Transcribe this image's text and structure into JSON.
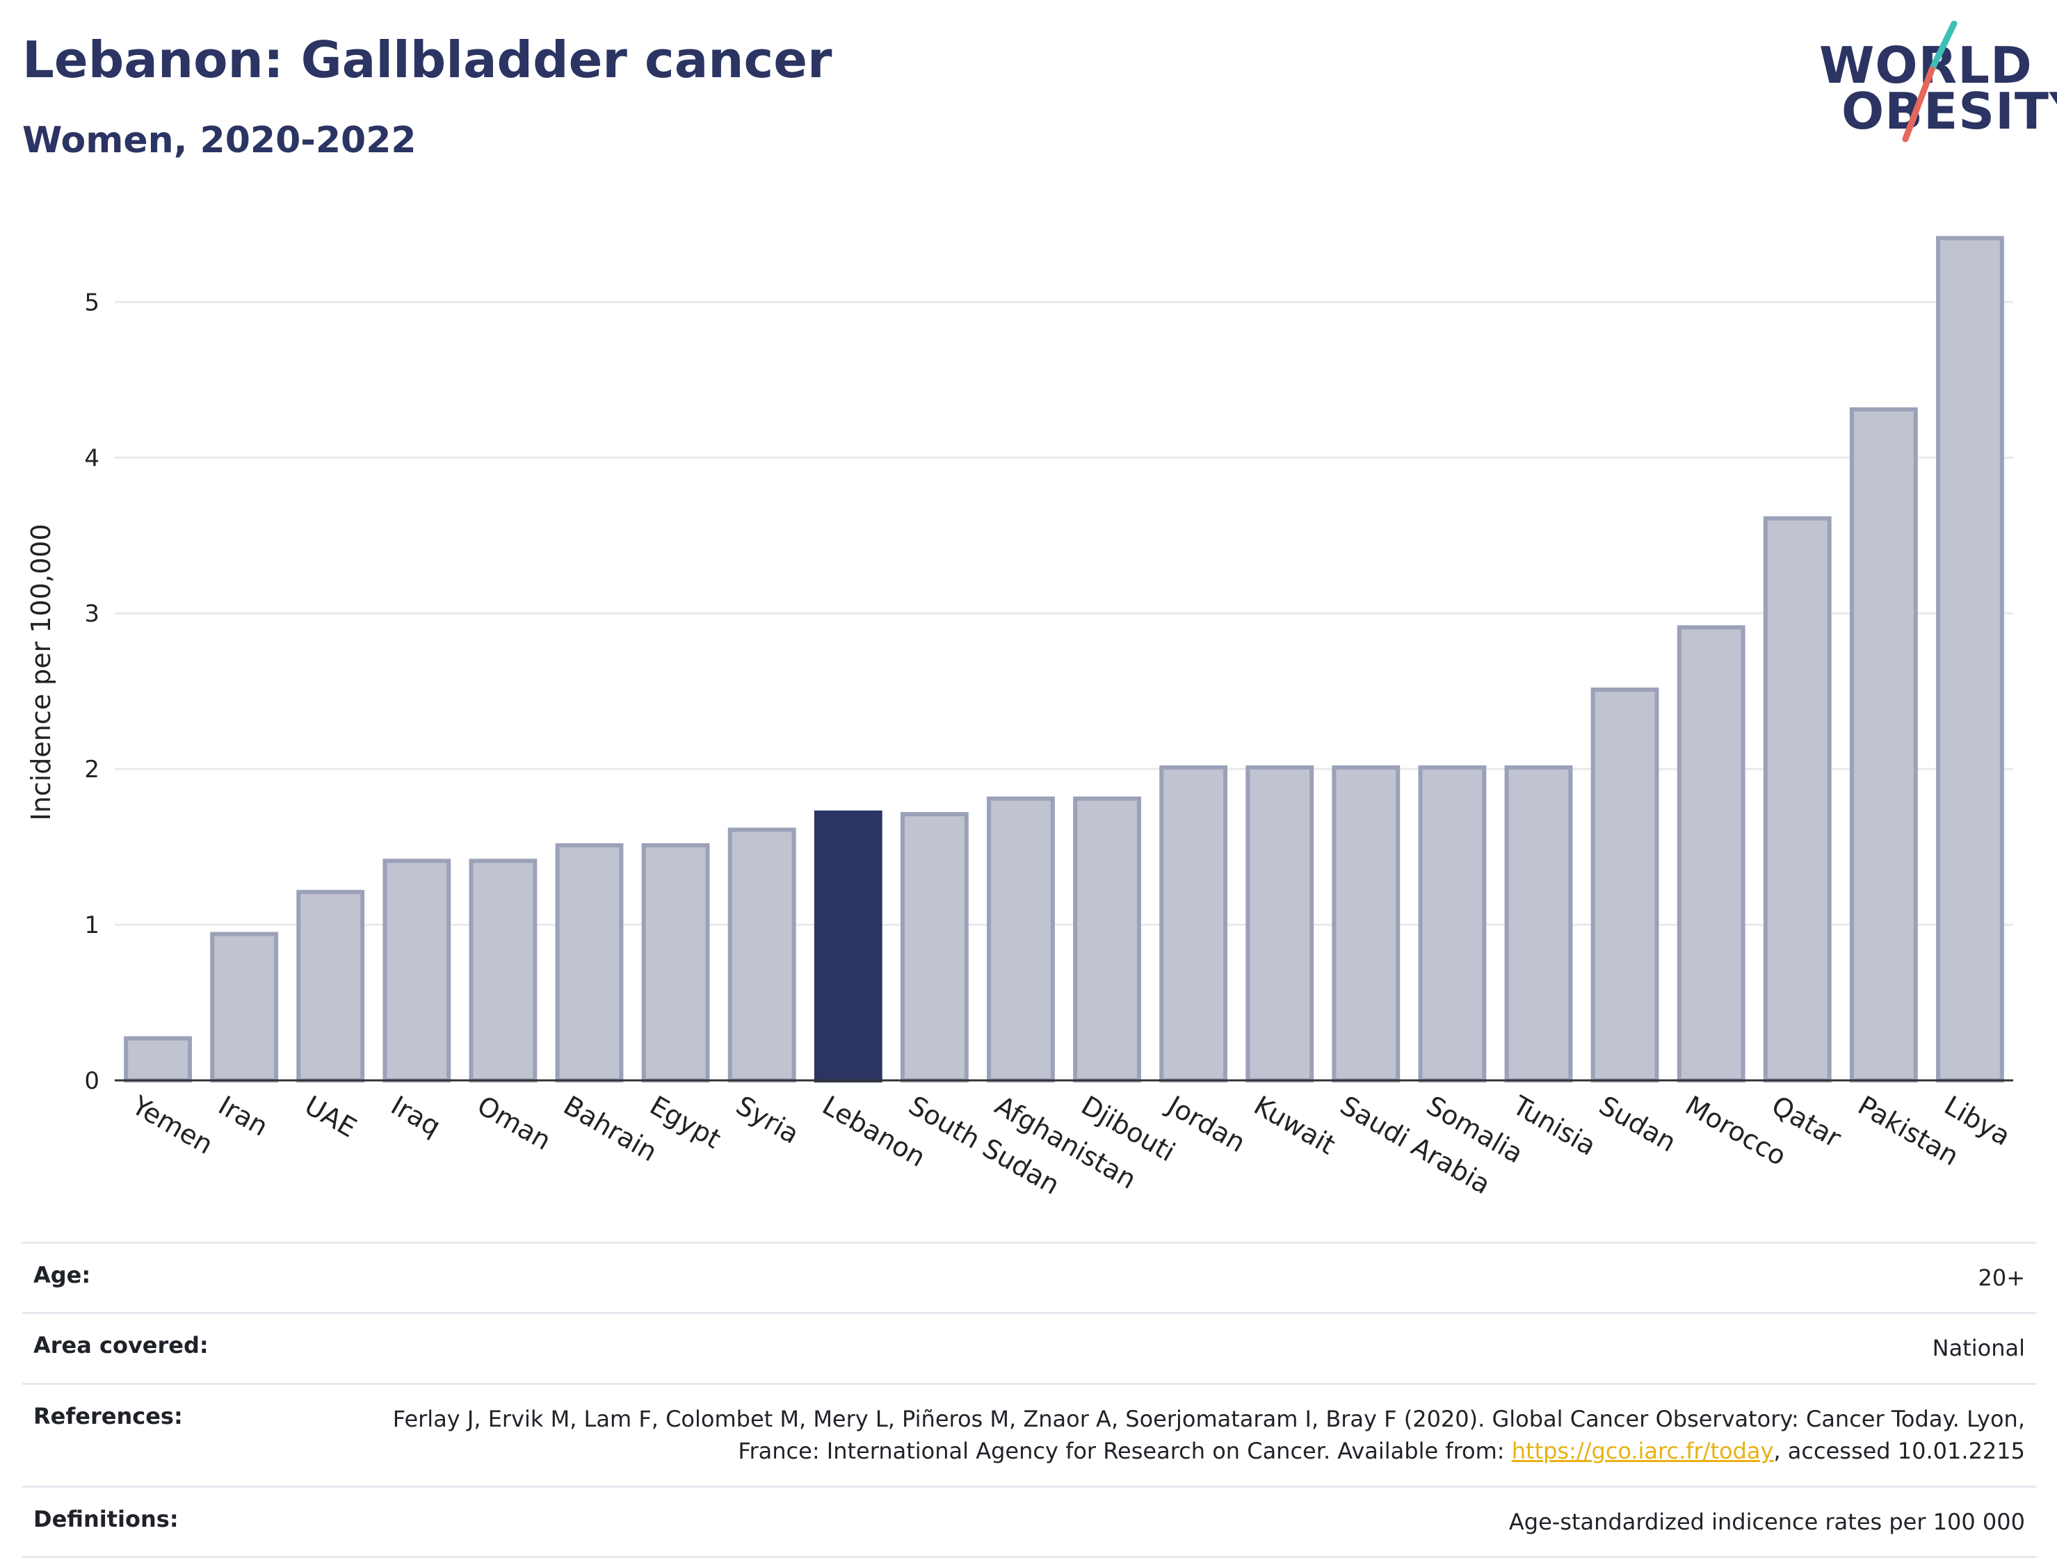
{
  "header": {
    "title": "Lebanon: Gallbladder cancer",
    "subtitle": "Women, 2020-2022"
  },
  "logo": {
    "line1": "WORLD",
    "line2": "OBESITY",
    "slash_colors": [
      "#3dbfb5",
      "#e5685b"
    ]
  },
  "chart_data": {
    "type": "bar",
    "categories": [
      "Yemen",
      "Iran",
      "UAE",
      "Iraq",
      "Oman",
      "Bahrain",
      "Egypt",
      "Syria",
      "Lebanon",
      "South Sudan",
      "Afghanistan",
      "Djibouti",
      "Jordan",
      "Kuwait",
      "Saudi Arabia",
      "Somalia",
      "Tunisia",
      "Sudan",
      "Morocco",
      "Qatar",
      "Pakistan",
      "Libya"
    ],
    "values": [
      0.27,
      0.94,
      1.21,
      1.41,
      1.41,
      1.51,
      1.51,
      1.61,
      1.72,
      1.71,
      1.81,
      1.81,
      2.01,
      2.01,
      2.01,
      2.01,
      2.01,
      2.51,
      2.91,
      3.61,
      4.31,
      5.41
    ],
    "highlight": "Lebanon",
    "ylabel": "Incidence per 100,000",
    "ylim": [
      0,
      5.6
    ],
    "yticks": [
      0,
      1,
      2,
      3,
      4,
      5
    ],
    "grid": true,
    "colors": {
      "bar": "#c0c3d0",
      "bar_edge": "#9ba1b8",
      "highlight": "#2b3462",
      "grid": "#e9e9ee",
      "axis": "#333333"
    }
  },
  "info": {
    "age": {
      "label": "Age:",
      "value": "20+"
    },
    "area": {
      "label": "Area covered:",
      "value": "National"
    },
    "references": {
      "label": "References:",
      "text_before": "Ferlay J, Ervik M, Lam F, Colombet M, Mery L, Piñeros M, Znaor A, Soerjomataram I, Bray F (2020). Global Cancer Observatory: Cancer Today. Lyon, France: International Agency for Research on Cancer. Available from: ",
      "link": "https://gco.iarc.fr/today",
      "text_after": ", accessed 10.01.2215"
    },
    "definitions": {
      "label": "Definitions:",
      "value": "Age-standardized indicence rates per 100 000"
    }
  }
}
